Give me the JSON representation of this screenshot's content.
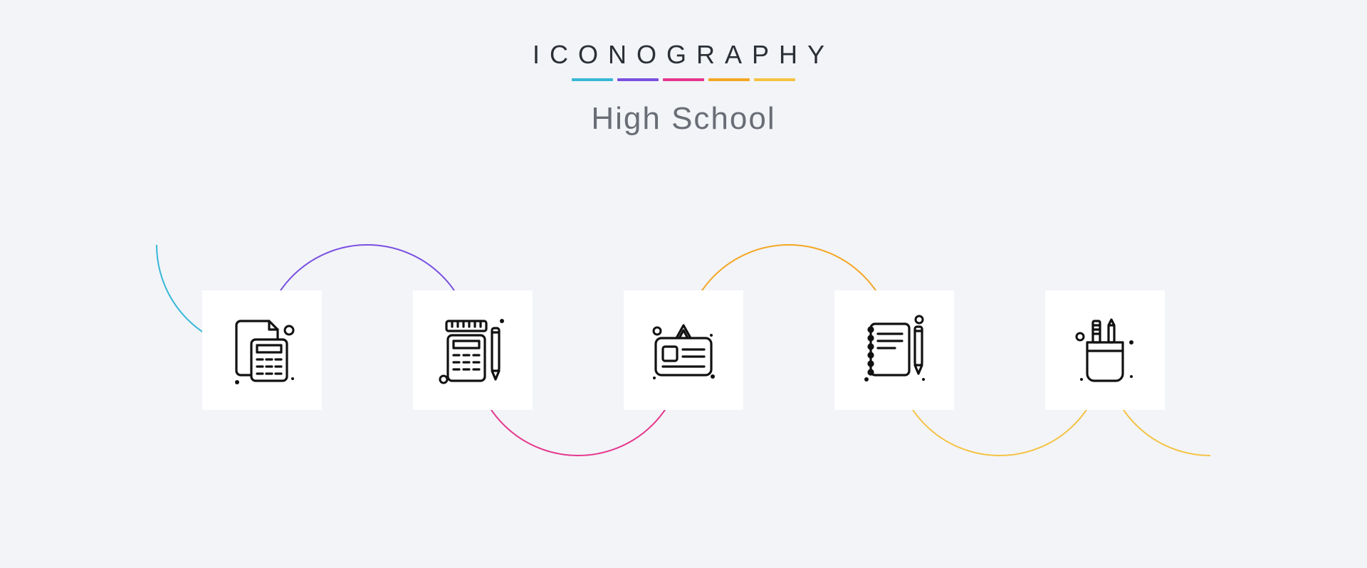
{
  "header": {
    "brand": "ICONOGRAPHY",
    "subtitle": "High School"
  },
  "palette": {
    "background": "#f2f4f8",
    "tile_bg": "#ffffff",
    "ink": "#111111",
    "brand_text": "#2b2f36",
    "subtitle_text": "#696d75",
    "accents": [
      "#36b8d6",
      "#7a4ee0",
      "#e6358c",
      "#f5a623",
      "#f5c242"
    ]
  },
  "connector": {
    "stroke_width": 2,
    "arcs": [
      {
        "color": "#36b8d6",
        "sweep": "down"
      },
      {
        "color": "#7a4ee0",
        "sweep": "up"
      },
      {
        "color": "#e6358c",
        "sweep": "down"
      },
      {
        "color": "#f5a623",
        "sweep": "up"
      },
      {
        "color": "#f5c242",
        "sweep": "down"
      }
    ]
  },
  "icons": [
    {
      "name": "document-calculator-icon"
    },
    {
      "name": "calculator-ruler-pencil-icon"
    },
    {
      "name": "id-card-icon"
    },
    {
      "name": "notebook-pencil-icon"
    },
    {
      "name": "pencil-holder-icon"
    }
  ]
}
